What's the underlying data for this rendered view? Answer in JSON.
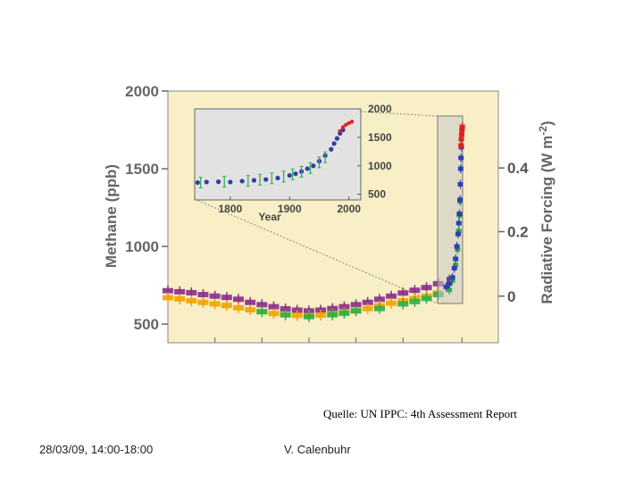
{
  "slide": {
    "caption": "Quelle: UN IPPC: 4th Assessment Report",
    "footer_date": "28/03/09, 14:00-18:00",
    "footer_author": "V. Calenbuhr"
  },
  "colors": {
    "panel_bg": "#f8efc6",
    "inset_bg": "#e2e2e2",
    "purple": "#8b2a8b",
    "orange": "#f0a400",
    "green": "#2bb04a",
    "blue": "#2e3fa8",
    "red": "#e02020",
    "axis": "#666666"
  },
  "chart_data": [
    {
      "type": "scatter",
      "xlabel": "",
      "ylabel": "Methane (ppb)",
      "ylabel_right": "Radiative Forcing (W m⁻²)",
      "ylim": [
        380,
        2000
      ],
      "yticks": [
        500,
        1000,
        1500,
        2000
      ],
      "yticks_right": [
        {
          "label": "0",
          "methane_ppb": 680
        },
        {
          "label": "0.2",
          "methane_ppb": 1095
        },
        {
          "label": "0.4",
          "methane_ppb": 1505
        }
      ],
      "xlim": [
        -10000,
        2250
      ],
      "xticks": [
        -8000,
        -6000,
        -4000,
        -2000,
        0,
        2000
      ],
      "xtick_labels_shown": false,
      "grid": false,
      "series": [
        {
          "color": "purple",
          "points": [
            [
              -10000,
              715
            ],
            [
              -9500,
              708
            ],
            [
              -9000,
              702
            ],
            [
              -8500,
              690
            ],
            [
              -8000,
              680
            ],
            [
              -7500,
              672
            ],
            [
              -7000,
              660
            ],
            [
              -6500,
              640
            ],
            [
              -6000,
              625
            ],
            [
              -5500,
              612
            ],
            [
              -5000,
              598
            ],
            [
              -4500,
              590
            ],
            [
              -4000,
              585
            ],
            [
              -3500,
              590
            ],
            [
              -3000,
              600
            ],
            [
              -2500,
              612
            ],
            [
              -2000,
              625
            ],
            [
              -1500,
              640
            ],
            [
              -1000,
              660
            ],
            [
              -500,
              680
            ],
            [
              0,
              700
            ],
            [
              500,
              718
            ],
            [
              1000,
              735
            ],
            [
              1500,
              760
            ],
            [
              1800,
              790
            ]
          ]
        },
        {
          "color": "orange",
          "points": [
            [
              -10000,
              670
            ],
            [
              -9500,
              662
            ],
            [
              -9000,
              650
            ],
            [
              -8500,
              640
            ],
            [
              -8000,
              630
            ],
            [
              -7500,
              620
            ],
            [
              -7000,
              605
            ],
            [
              -6500,
              592
            ],
            [
              -6000,
              580
            ],
            [
              -5500,
              568
            ],
            [
              -5000,
              560
            ],
            [
              -4500,
              556
            ],
            [
              -4000,
              555
            ],
            [
              -3500,
              558
            ],
            [
              -3000,
              565
            ],
            [
              -2500,
              575
            ],
            [
              -2000,
              585
            ],
            [
              -1500,
              600
            ],
            [
              -1000,
              618
            ],
            [
              -500,
              635
            ],
            [
              0,
              650
            ],
            [
              500,
              665
            ],
            [
              1000,
              680
            ],
            [
              1500,
              700
            ]
          ]
        },
        {
          "color": "green",
          "points": [
            [
              -6000,
              580
            ],
            [
              -5000,
              560
            ],
            [
              -4000,
              548
            ],
            [
              -3000,
              560
            ],
            [
              -2500,
              570
            ],
            [
              -2000,
              585
            ],
            [
              -1000,
              600
            ],
            [
              0,
              630
            ],
            [
              500,
              645
            ],
            [
              1000,
              665
            ],
            [
              1500,
              690
            ],
            [
              1800,
              720
            ],
            [
              1850,
              780
            ],
            [
              1900,
              880
            ],
            [
              1930,
              980
            ],
            [
              1950,
              1100
            ],
            [
              1960,
              1200
            ],
            [
              1970,
              1290
            ]
          ]
        },
        {
          "color": "blue",
          "points": [
            [
              1750,
              740
            ],
            [
              1800,
              760
            ],
            [
              1850,
              800
            ],
            [
              1880,
              860
            ],
            [
              1900,
              920
            ],
            [
              1920,
              1000
            ],
            [
              1940,
              1080
            ],
            [
              1950,
              1150
            ],
            [
              1960,
              1210
            ],
            [
              1970,
              1300
            ],
            [
              1975,
              1400
            ],
            [
              1980,
              1500
            ],
            [
              1985,
              1570
            ],
            [
              1990,
              1640
            ]
          ]
        },
        {
          "color": "red",
          "points": [
            [
              1985,
              1650
            ],
            [
              1990,
              1690
            ],
            [
              1995,
              1720
            ],
            [
              2000,
              1750
            ],
            [
              2005,
              1770
            ]
          ]
        }
      ]
    },
    {
      "type": "scatter",
      "xlabel": "Year",
      "ylabel": "",
      "xlim": [
        1740,
        2020
      ],
      "xticks": [
        1800,
        1900,
        2000
      ],
      "ylim": [
        400,
        2000
      ],
      "yticks_right": [
        500,
        1000,
        1500,
        2000
      ],
      "grid": false,
      "series": [
        {
          "color": "blue",
          "points": [
            [
              1745,
              705
            ],
            [
              1760,
              715
            ],
            [
              1780,
              720
            ],
            [
              1800,
              715
            ],
            [
              1820,
              730
            ],
            [
              1840,
              745
            ],
            [
              1860,
              760
            ],
            [
              1880,
              785
            ],
            [
              1900,
              830
            ],
            [
              1910,
              860
            ],
            [
              1920,
              900
            ],
            [
              1930,
              950
            ],
            [
              1940,
              1000
            ],
            [
              1950,
              1080
            ],
            [
              1960,
              1180
            ],
            [
              1970,
              1290
            ],
            [
              1975,
              1390
            ],
            [
              1980,
              1480
            ],
            [
              1985,
              1570
            ],
            [
              1990,
              1630
            ]
          ]
        },
        {
          "color": "green",
          "points": [
            [
              1750,
              705
            ],
            [
              1790,
              720
            ],
            [
              1830,
              735
            ],
            [
              1850,
              755
            ],
            [
              1870,
              780
            ],
            [
              1890,
              810
            ],
            [
              1905,
              850
            ],
            [
              1920,
              895
            ],
            [
              1935,
              960
            ],
            [
              1950,
              1060
            ],
            [
              1960,
              1150
            ]
          ]
        },
        {
          "color": "red",
          "points": [
            [
              1985,
              1610
            ],
            [
              1990,
              1680
            ],
            [
              1995,
              1720
            ],
            [
              2000,
              1750
            ],
            [
              2005,
              1775
            ]
          ]
        }
      ]
    }
  ]
}
